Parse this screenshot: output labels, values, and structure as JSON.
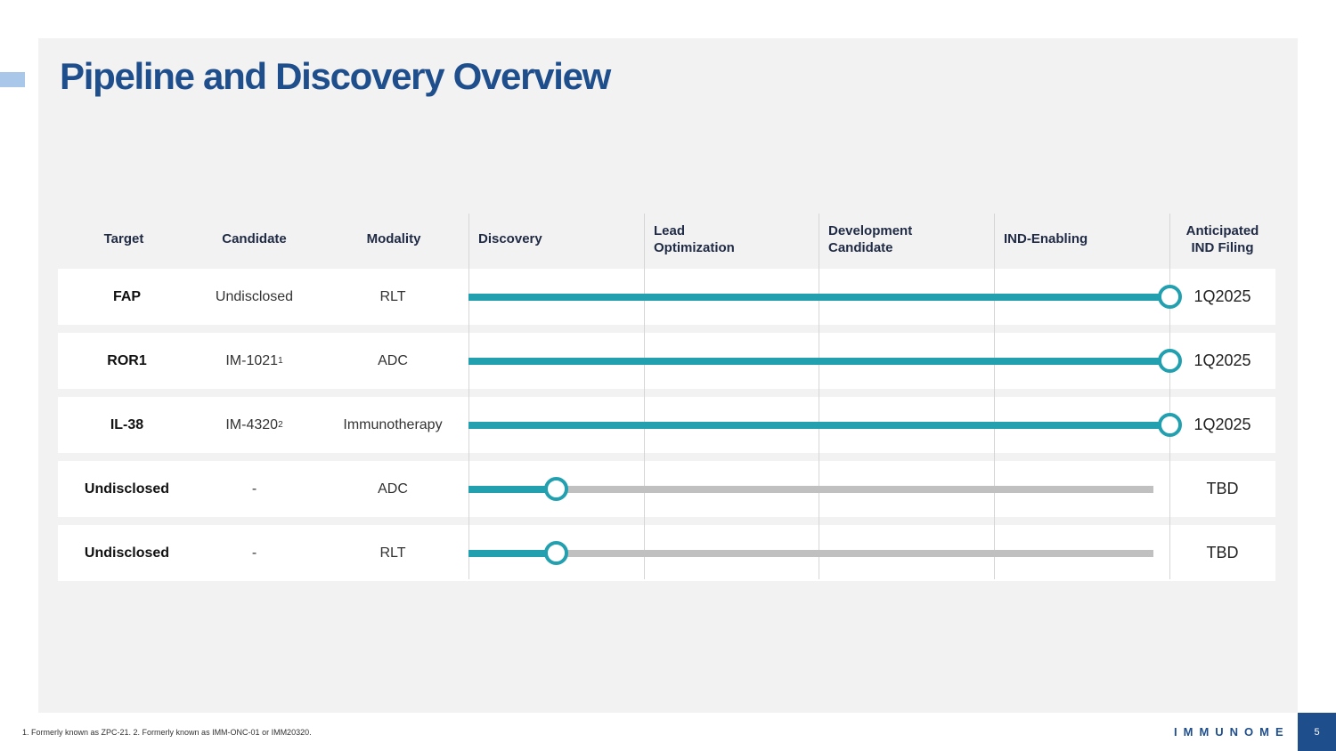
{
  "title": "Pipeline and Discovery Overview",
  "headers": {
    "target": "Target",
    "candidate": "Candidate",
    "modality": "Modality",
    "discovery": "Discovery",
    "lead_optimization": [
      "Lead",
      "Optimization"
    ],
    "development_candidate": [
      "Development",
      "Candidate"
    ],
    "ind_enabling": "IND-Enabling",
    "anticipated_filing": [
      "Anticipated",
      "IND Filing"
    ]
  },
  "rows": [
    {
      "target": "FAP",
      "candidate": "Undisclosed",
      "candidate_sup": "",
      "modality": "RLT",
      "progress_stage": 4.0,
      "filing": "1Q2025"
    },
    {
      "target": "ROR1",
      "candidate": "IM-1021",
      "candidate_sup": "1",
      "modality": "ADC",
      "progress_stage": 4.0,
      "filing": "1Q2025"
    },
    {
      "target": "IL-38",
      "candidate": "IM-4320",
      "candidate_sup": "2",
      "modality": "Immunotherapy",
      "progress_stage": 4.0,
      "filing": "1Q2025"
    },
    {
      "target": "Undisclosed",
      "candidate": "-",
      "candidate_sup": "",
      "modality": "ADC",
      "progress_stage": 0.5,
      "filing": "TBD"
    },
    {
      "target": "Undisclosed",
      "candidate": "-",
      "candidate_sup": "",
      "modality": "RLT",
      "progress_stage": 0.5,
      "filing": "TBD"
    }
  ],
  "colors": {
    "title": "#1f4e8c",
    "progress": "#22a0b0",
    "track": "#c0c0c0",
    "panel": "#f2f2f2"
  },
  "footnote": "1. Formerly known as ZPC-21. 2. Formerly known as IMM-ONC-01 or IMM20320.",
  "logo_text": "IMMUNOME",
  "page_number": "5"
}
